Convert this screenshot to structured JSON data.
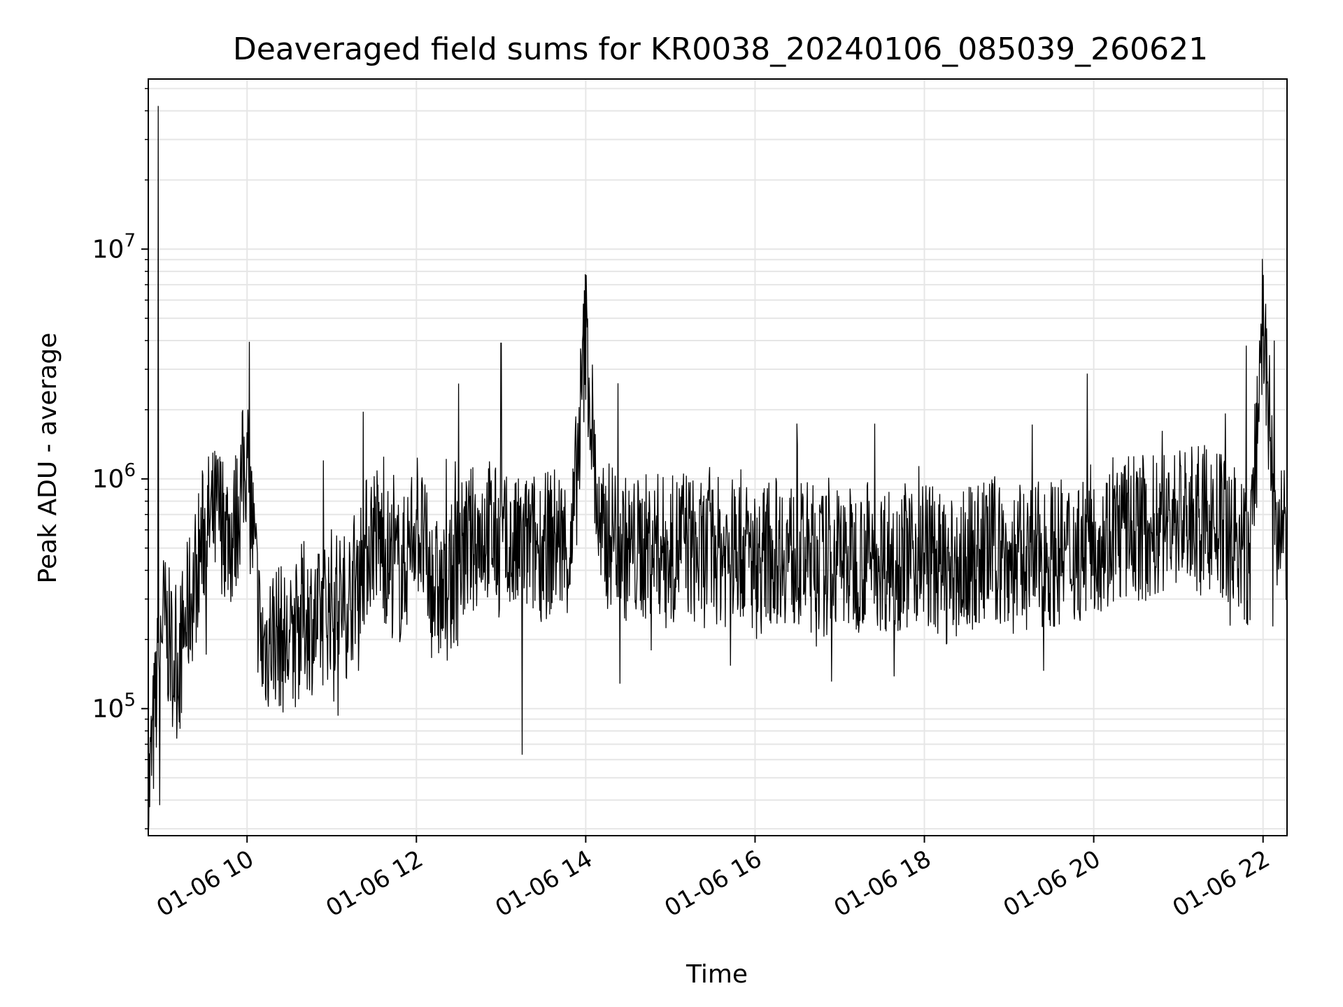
{
  "chart_data": {
    "type": "line",
    "title": "Deaveraged field sums for KR0038_20240106_085039_260621",
    "xlabel": "Time",
    "ylabel": "Peak ADU - average",
    "x_range": [
      "2024-01-06 08:50",
      "2024-01-06 22:17"
    ],
    "x_ticks": [
      "01-06 10",
      "01-06 12",
      "01-06 14",
      "01-06 16",
      "01-06 18",
      "01-06 20",
      "01-06 22"
    ],
    "y_scale": "log",
    "y_range": [
      28000,
      55000000
    ],
    "y_ticks": [
      {
        "value": 100000,
        "base": "10",
        "exp": "5"
      },
      {
        "value": 1000000,
        "base": "10",
        "exp": "6"
      },
      {
        "value": 10000000,
        "base": "10",
        "exp": "7"
      }
    ],
    "grid": true,
    "legend": "none",
    "series_color": "#000000",
    "grid_color": "#e6e6e6",
    "series": [
      {
        "x": [
          "2024-01-06 08:50",
          "2024-01-06 09:00",
          "2024-01-06 09:10",
          "2024-01-06 09:20",
          "2024-01-06 09:30",
          "2024-01-06 09:40",
          "2024-01-06 09:50",
          "2024-01-06 10:00",
          "2024-01-06 10:10",
          "2024-01-06 10:20",
          "2024-01-06 10:30",
          "2024-01-06 10:40",
          "2024-01-06 10:50",
          "2024-01-06 11:00",
          "2024-01-06 11:10",
          "2024-01-06 11:20",
          "2024-01-06 11:30",
          "2024-01-06 11:40",
          "2024-01-06 11:50",
          "2024-01-06 12:00",
          "2024-01-06 12:10",
          "2024-01-06 12:20",
          "2024-01-06 12:30",
          "2024-01-06 12:40",
          "2024-01-06 12:50",
          "2024-01-06 13:00",
          "2024-01-06 13:10",
          "2024-01-06 13:20",
          "2024-01-06 13:30",
          "2024-01-06 13:40",
          "2024-01-06 13:50",
          "2024-01-06 14:00",
          "2024-01-06 14:10",
          "2024-01-06 14:20",
          "2024-01-06 14:30",
          "2024-01-06 14:40",
          "2024-01-06 14:50",
          "2024-01-06 15:00",
          "2024-01-06 15:10",
          "2024-01-06 15:20",
          "2024-01-06 15:30",
          "2024-01-06 15:40",
          "2024-01-06 15:50",
          "2024-01-06 16:00",
          "2024-01-06 16:10",
          "2024-01-06 16:20",
          "2024-01-06 16:30",
          "2024-01-06 16:40",
          "2024-01-06 16:50",
          "2024-01-06 17:00",
          "2024-01-06 17:10",
          "2024-01-06 17:20",
          "2024-01-06 17:30",
          "2024-01-06 17:40",
          "2024-01-06 17:50",
          "2024-01-06 18:00",
          "2024-01-06 18:10",
          "2024-01-06 18:20",
          "2024-01-06 18:30",
          "2024-01-06 18:40",
          "2024-01-06 18:50",
          "2024-01-06 19:00",
          "2024-01-06 19:10",
          "2024-01-06 19:20",
          "2024-01-06 19:30",
          "2024-01-06 19:40",
          "2024-01-06 19:50",
          "2024-01-06 20:00",
          "2024-01-06 20:10",
          "2024-01-06 20:20",
          "2024-01-06 20:30",
          "2024-01-06 20:40",
          "2024-01-06 20:50",
          "2024-01-06 21:00",
          "2024-01-06 21:10",
          "2024-01-06 21:20",
          "2024-01-06 21:30",
          "2024-01-06 21:40",
          "2024-01-06 21:50",
          "2024-01-06 22:00",
          "2024-01-06 22:10",
          "2024-01-06 22:17"
        ],
        "y": [
          40000,
          250000,
          150000,
          300000,
          600000,
          700000,
          550000,
          1300000,
          180000,
          220000,
          180000,
          260000,
          230000,
          300000,
          280000,
          420000,
          600000,
          450000,
          380000,
          700000,
          350000,
          300000,
          450000,
          550000,
          620000,
          500000,
          480000,
          520000,
          500000,
          560000,
          470000,
          4500000,
          520000,
          600000,
          480000,
          500000,
          520000,
          480000,
          560000,
          450000,
          500000,
          470000,
          520000,
          420000,
          480000,
          500000,
          450000,
          470000,
          420000,
          460000,
          440000,
          480000,
          450000,
          460000,
          470000,
          500000,
          420000,
          380000,
          440000,
          470000,
          500000,
          430000,
          450000,
          460000,
          480000,
          470000,
          500000,
          560000,
          560000,
          600000,
          620000,
          600000,
          650000,
          700000,
          650000,
          680000,
          620000,
          560000,
          400000,
          4800000,
          480000,
          600000
        ]
      }
    ],
    "peaks": [
      {
        "x": "2024-01-06 08:57",
        "y": 42000000
      },
      {
        "x": "2024-01-06 08:58",
        "y": 38000
      },
      {
        "x": "2024-01-06 12:30",
        "y": 2600000
      },
      {
        "x": "2024-01-06 13:00",
        "y": 3900000
      },
      {
        "x": "2024-01-06 13:15",
        "y": 63000
      },
      {
        "x": "2024-01-06 21:48",
        "y": 3800000
      },
      {
        "x": "2024-01-06 21:58",
        "y": 3200000
      },
      {
        "x": "2024-01-06 22:08",
        "y": 4000000
      }
    ]
  }
}
